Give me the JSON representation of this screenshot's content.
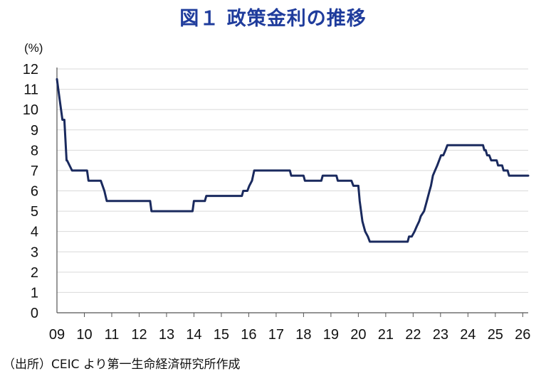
{
  "chart_data": {
    "type": "line",
    "title": "図１ 政策金利の推移",
    "ylabel": "(%)",
    "xlabel": "",
    "source": "（出所）CEIC より第一生命経済研究所作成",
    "ylim": [
      0,
      12
    ],
    "xlim": [
      2009.0,
      2026.2
    ],
    "yticks": [
      "0",
      "1",
      "2",
      "3",
      "4",
      "5",
      "6",
      "7",
      "8",
      "9",
      "10",
      "11",
      "12"
    ],
    "xticks": [
      "09",
      "10",
      "11",
      "12",
      "13",
      "14",
      "15",
      "16",
      "17",
      "18",
      "19",
      "20",
      "21",
      "22",
      "23",
      "24",
      "25",
      "26"
    ],
    "grid": true,
    "legend": "none",
    "colors": {
      "line": "#1a2a5e",
      "title": "#1f3c9c",
      "grid": "#d9d9d9"
    },
    "series": [
      {
        "x": [
          2009.0,
          2009.1,
          2009.2,
          2009.27,
          2009.35,
          2009.37,
          2009.55,
          2009.57,
          2010.1,
          2010.15,
          2010.55,
          2010.6,
          2010.73,
          2010.82,
          2012.4,
          2012.45,
          2013.95,
          2014.0,
          2014.4,
          2014.45,
          2015.5,
          2015.55,
          2015.75,
          2015.8,
          2015.95,
          2016.02,
          2016.12,
          2016.2,
          2017.5,
          2017.55,
          2018.0,
          2018.05,
          2018.65,
          2018.7,
          2019.2,
          2019.25,
          2019.75,
          2019.82,
          2020.0,
          2020.05,
          2020.15,
          2020.25,
          2020.35,
          2020.42,
          2020.48,
          2021.8,
          2021.85,
          2021.95,
          2022.05,
          2022.13,
          2022.22,
          2022.28,
          2022.4,
          2022.5,
          2022.55,
          2022.6,
          2022.65,
          2022.72,
          2022.8,
          2022.88,
          2022.95,
          2023.02,
          2023.1,
          2023.18,
          2023.25,
          2023.3,
          2024.55,
          2024.6,
          2024.65,
          2024.7,
          2024.78,
          2024.85,
          2025.05,
          2025.1,
          2025.25,
          2025.3,
          2025.45,
          2025.5,
          2025.62,
          2025.68,
          2026.2
        ],
        "y": [
          11.5,
          10.5,
          9.5,
          9.5,
          7.5,
          7.5,
          7.0,
          7.0,
          7.0,
          6.5,
          6.5,
          6.5,
          6.0,
          5.5,
          5.5,
          5.0,
          5.0,
          5.5,
          5.5,
          5.75,
          5.75,
          5.75,
          5.75,
          6.0,
          6.0,
          6.25,
          6.5,
          7.0,
          7.0,
          6.75,
          6.75,
          6.5,
          6.5,
          6.75,
          6.75,
          6.5,
          6.5,
          6.25,
          6.25,
          5.5,
          4.5,
          4.0,
          3.75,
          3.5,
          3.5,
          3.5,
          3.75,
          3.75,
          4.0,
          4.25,
          4.5,
          4.75,
          5.0,
          5.5,
          5.75,
          6.0,
          6.25,
          6.75,
          7.0,
          7.25,
          7.5,
          7.75,
          7.75,
          8.0,
          8.25,
          8.25,
          8.25,
          8.0,
          8.0,
          7.75,
          7.75,
          7.5,
          7.5,
          7.25,
          7.25,
          7.0,
          7.0,
          6.75,
          6.75,
          6.75,
          6.75
        ]
      }
    ]
  }
}
